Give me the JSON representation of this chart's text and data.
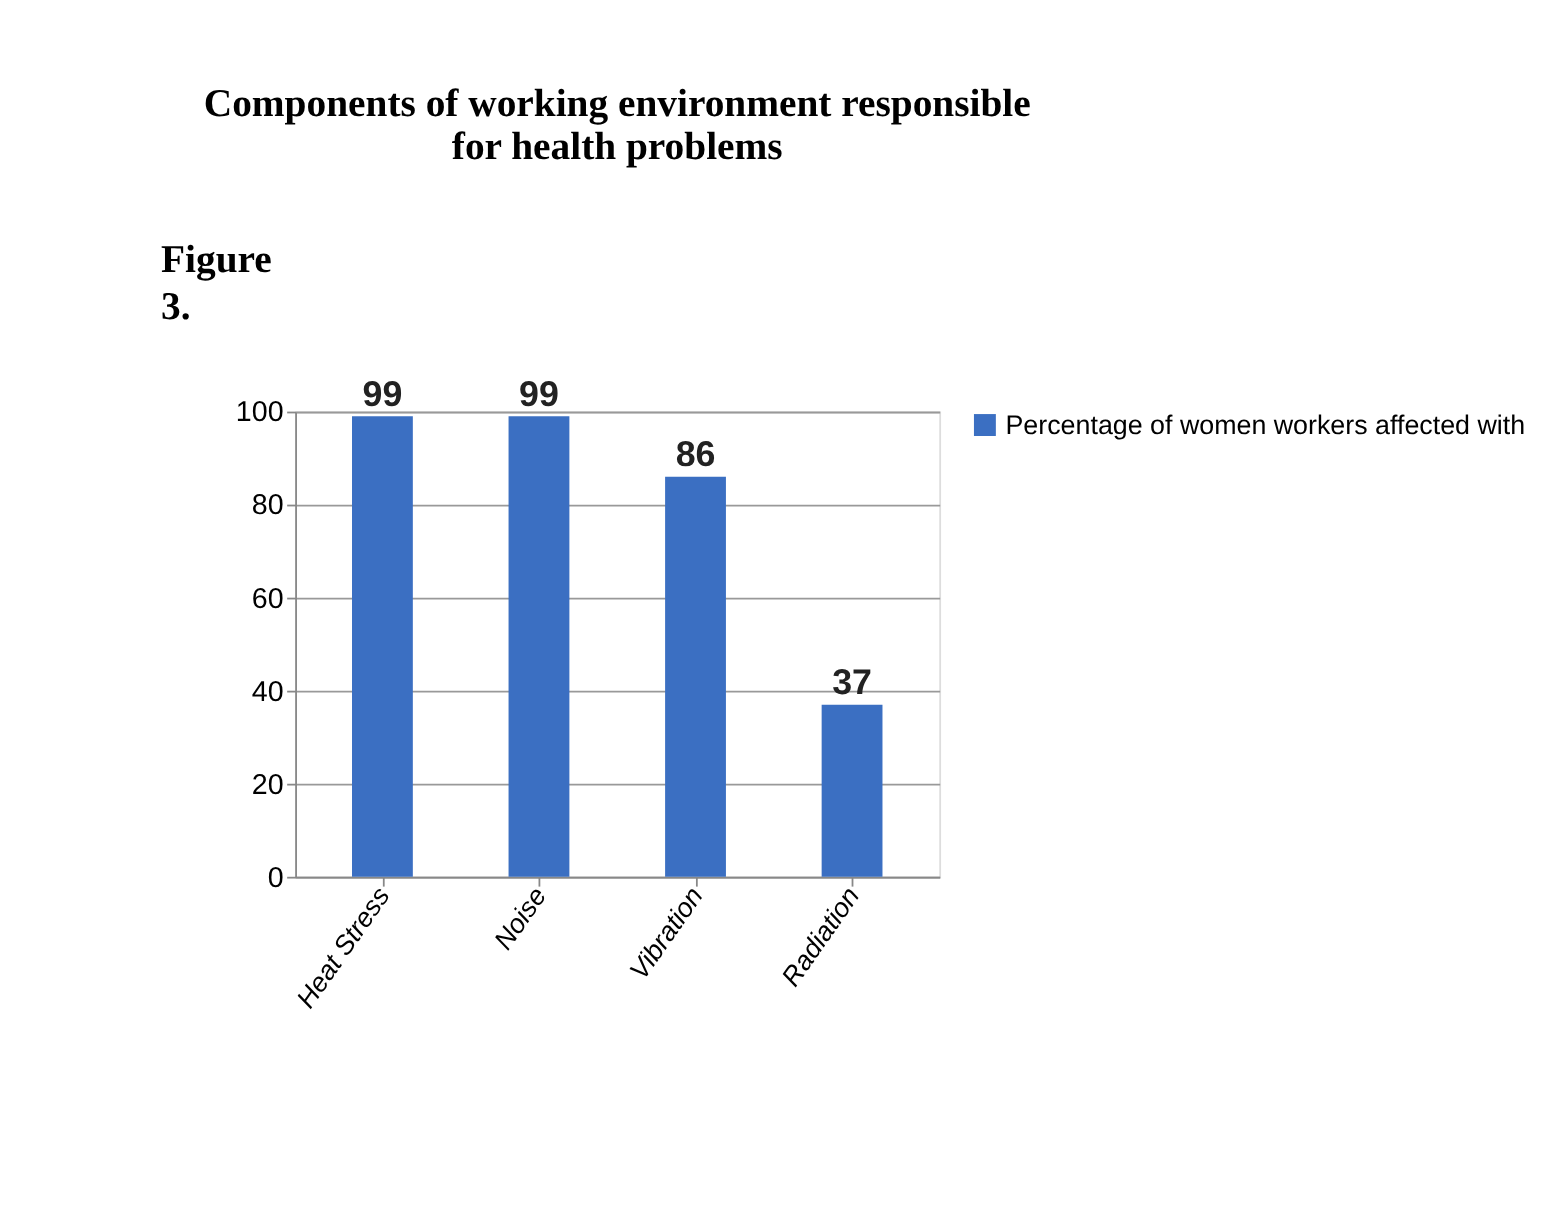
{
  "chart_data": {
    "type": "bar",
    "title": "Components of working environment responsible\nfor health problems",
    "annotations": [
      "Figure 3."
    ],
    "categories": [
      "Heat Stress",
      "Noise",
      "Vibration",
      "Radiation"
    ],
    "series": [
      {
        "name": "Percentage of women workers affected with",
        "color": "#3b6fc2",
        "values": [
          99,
          99,
          86,
          37
        ]
      }
    ],
    "ylim": [
      0,
      100
    ],
    "yticks": [
      0,
      20,
      40,
      60,
      80,
      100
    ],
    "grid": "y",
    "legend": "right",
    "data_labels": true
  }
}
